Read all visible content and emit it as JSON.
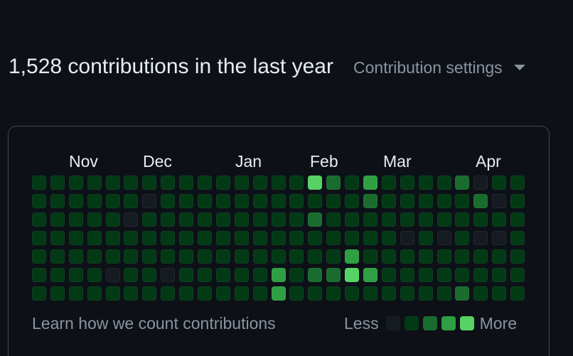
{
  "heading": "1,528 contributions in the last year",
  "settings_label": "Contribution settings",
  "months": [
    "Nov",
    "Dec",
    "Jan",
    "Feb",
    "Mar",
    "Apr"
  ],
  "levels": {
    "level0": "#161b22",
    "level1": "#033a16",
    "level2": "#196c2e",
    "level3": "#2ea043",
    "level4": "#56d364"
  },
  "grid": [
    [
      1,
      1,
      1,
      1,
      1,
      1,
      1,
      1,
      1,
      1,
      1,
      1,
      1,
      1,
      1,
      4,
      2,
      1,
      3,
      1,
      1,
      1,
      1,
      2,
      0,
      1,
      1
    ],
    [
      1,
      1,
      1,
      1,
      1,
      1,
      0,
      1,
      1,
      1,
      1,
      1,
      1,
      1,
      1,
      1,
      1,
      1,
      2,
      1,
      1,
      1,
      1,
      1,
      2,
      0,
      1
    ],
    [
      1,
      1,
      1,
      1,
      1,
      0,
      1,
      1,
      1,
      1,
      1,
      1,
      1,
      1,
      1,
      2,
      1,
      1,
      1,
      1,
      1,
      1,
      1,
      1,
      1,
      1,
      1
    ],
    [
      1,
      1,
      1,
      1,
      1,
      1,
      1,
      1,
      1,
      1,
      1,
      1,
      1,
      1,
      1,
      1,
      1,
      1,
      1,
      1,
      0,
      1,
      0,
      1,
      0,
      0,
      1
    ],
    [
      1,
      1,
      1,
      1,
      1,
      1,
      1,
      1,
      1,
      1,
      1,
      1,
      1,
      1,
      1,
      1,
      1,
      3,
      1,
      1,
      1,
      1,
      1,
      1,
      1,
      1,
      1
    ],
    [
      1,
      1,
      1,
      1,
      0,
      1,
      1,
      0,
      1,
      1,
      1,
      1,
      1,
      3,
      1,
      2,
      2,
      4,
      3,
      1,
      1,
      1,
      1,
      1,
      1,
      1,
      1
    ],
    [
      1,
      1,
      1,
      1,
      1,
      1,
      1,
      1,
      1,
      1,
      1,
      1,
      1,
      3,
      1,
      1,
      1,
      1,
      1,
      1,
      1,
      1,
      1,
      2,
      1,
      1,
      1
    ]
  ],
  "footer": {
    "learn_link": "Learn how we count contributions",
    "less": "Less",
    "more": "More"
  }
}
